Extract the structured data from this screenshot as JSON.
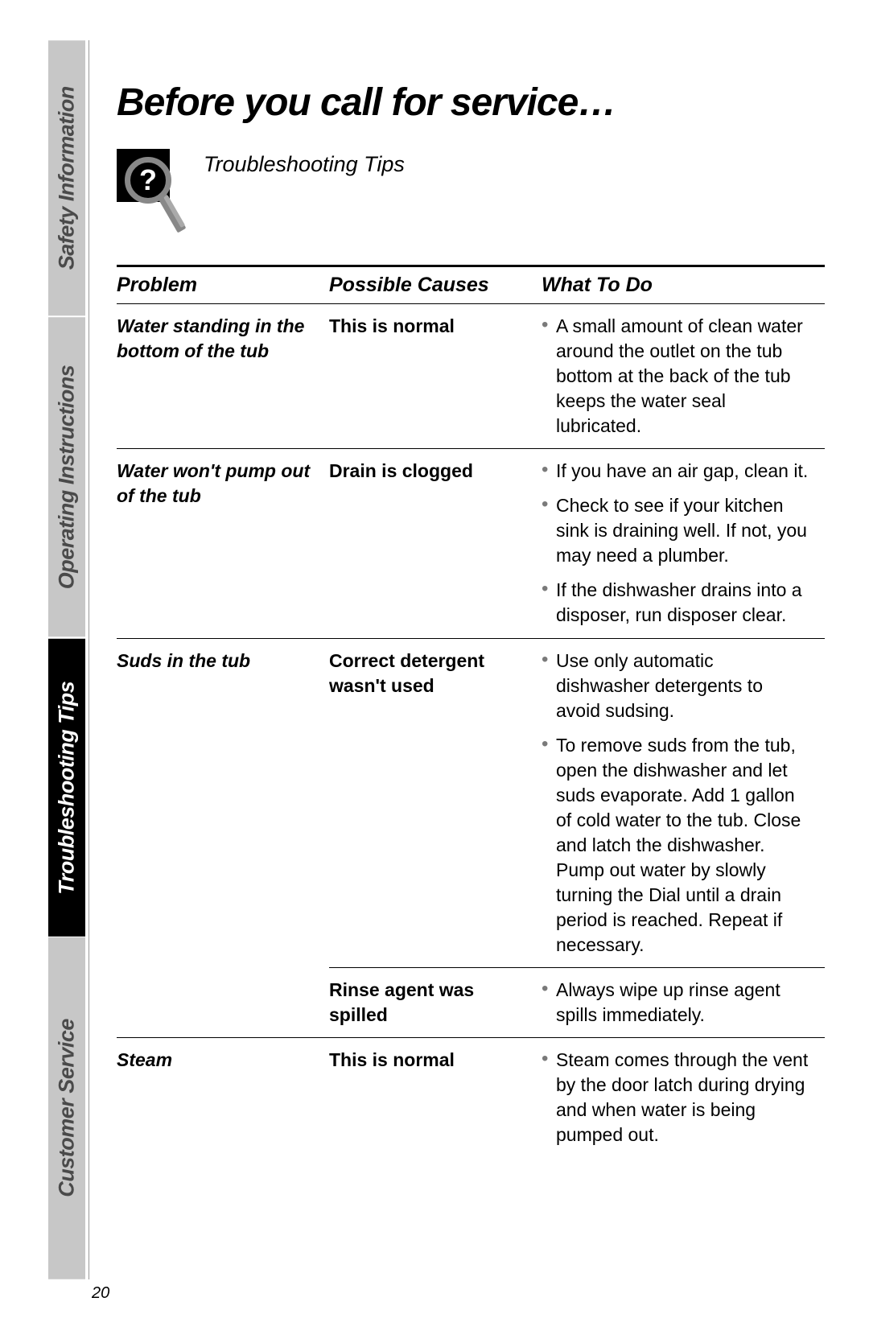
{
  "page_number": "20",
  "page_title": "Before you call for service…",
  "subtitle": "Troubleshooting Tips",
  "colors": {
    "tab_light_bg": "#c7c7c7",
    "tab_light_fg": "#4a4a4a",
    "tab_dark_bg": "#000000",
    "tab_dark_fg": "#ffffff",
    "bullet": "#7a7a7a",
    "rule": "#000000"
  },
  "sidebar_tabs": [
    {
      "label": "Safety Information",
      "style": "light",
      "flex": 22
    },
    {
      "label": "Operating Instructions",
      "style": "light",
      "flex": 26
    },
    {
      "label": "Troubleshooting Tips",
      "style": "dark",
      "flex": 24
    },
    {
      "label": "Customer Service",
      "style": "light",
      "flex": 28
    }
  ],
  "headers": {
    "problem": "Problem",
    "causes": "Possible Causes",
    "todo": "What To Do"
  },
  "rows": [
    {
      "problem": "Water standing in the bottom of the tub",
      "cause": "This is normal",
      "todo": [
        "A small amount of clean water around the outlet on the tub bottom at the back of the tub keeps the water seal lubricated."
      ]
    },
    {
      "problem": "Water won't pump out of the tub",
      "cause": "Drain is clogged",
      "todo": [
        "If you have an air gap, clean it.",
        "Check to see if your kitchen sink is draining well. If not, you may need a plumber.",
        "If the dishwasher drains into a disposer, run disposer clear."
      ]
    },
    {
      "problem": "Suds in the tub",
      "cause": "Correct detergent wasn't used",
      "todo": [
        "Use only automatic dishwasher detergents to avoid sudsing.",
        "To remove suds from the tub, open the dishwasher and let suds evaporate. Add 1 gallon of cold water to the tub. Close and latch the dishwasher. Pump out water by slowly turning the Dial until a drain period is reached. Repeat if necessary."
      ]
    },
    {
      "problem": "",
      "cause": "Rinse agent was spilled",
      "todo": [
        "Always wipe up rinse agent spills immediately."
      ]
    },
    {
      "problem": "Steam",
      "cause": "This is normal",
      "todo": [
        "Steam comes through the vent by the door latch during drying and when water is being pumped out."
      ]
    }
  ]
}
